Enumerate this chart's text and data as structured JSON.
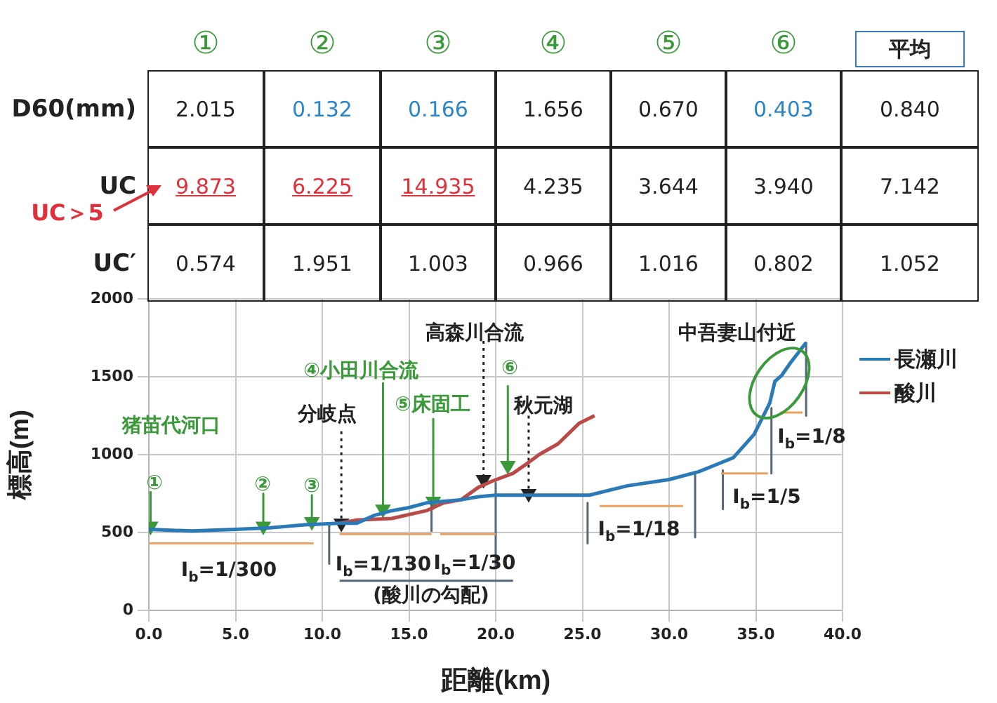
{
  "chart_data": {
    "type": "line",
    "xlabel": "距離(km)",
    "ylabel": "標高(m)",
    "xlim": [
      0,
      40
    ],
    "ylim": [
      0,
      2000
    ],
    "xticks": [
      {
        "value": 0,
        "label": "0.0"
      },
      {
        "value": 5,
        "label": "5.0"
      },
      {
        "value": 10,
        "label": "10.0"
      },
      {
        "value": 15,
        "label": "15.0"
      },
      {
        "value": 20,
        "label": "20.0"
      },
      {
        "value": 25,
        "label": "25.0"
      },
      {
        "value": 30,
        "label": "30.0"
      },
      {
        "value": 35,
        "label": "35.0"
      },
      {
        "value": 40,
        "label": "40.0"
      }
    ],
    "yticks": [
      0,
      500,
      1000,
      1500,
      2000
    ],
    "grid": true,
    "legend": "right",
    "marker": "none",
    "series": [
      {
        "name": "長瀬川",
        "color": "#2a7ab8",
        "x": [
          0,
          2.5,
          5,
          7,
          9,
          11,
          12,
          13,
          14,
          15,
          16,
          17,
          18,
          19,
          20,
          22,
          25.4,
          27.6,
          30,
          31.7,
          33.7,
          34.9,
          35.8,
          36.1,
          36.5,
          37,
          37.9
        ],
        "values": [
          520,
          510,
          520,
          530,
          550,
          560,
          560,
          610,
          640,
          660,
          690,
          700,
          710,
          730,
          740,
          740,
          740,
          800,
          840,
          890,
          980,
          1130,
          1330,
          1470,
          1510,
          1590,
          1720
        ]
      },
      {
        "name": "酸川",
        "color": "#b94a48",
        "x": [
          11,
          12,
          14,
          16,
          17,
          18,
          19,
          19.8,
          21,
          21.9,
          22.5,
          23.6,
          24.8,
          25.7
        ],
        "values": [
          560,
          580,
          590,
          640,
          690,
          710,
          790,
          830,
          880,
          950,
          1000,
          1070,
          1200,
          1250
        ]
      },
      {
        "color": "#e9a060",
        "x": [
          0,
          9.5
        ],
        "values": [
          430,
          430
        ]
      },
      {
        "color": "#e9a060",
        "x": [
          11,
          16.3
        ],
        "values": [
          490,
          490
        ]
      },
      {
        "color": "#e9a060",
        "x": [
          16.8,
          20
        ],
        "values": [
          490,
          490
        ]
      },
      {
        "color": "#e9a060",
        "x": [
          26,
          30.8
        ],
        "values": [
          670,
          670
        ]
      },
      {
        "color": "#e9a060",
        "x": [
          33,
          35.7
        ],
        "values": [
          880,
          880
        ]
      },
      {
        "color": "#e9a060",
        "x": [
          36.4,
          37.7
        ],
        "values": [
          1270,
          1270
        ]
      },
      {
        "color": "#556677",
        "x": [
          11,
          21
        ],
        "values": [
          190,
          190
        ]
      },
      {
        "color": "#556677",
        "x": [
          10.4,
          10.4
        ],
        "values": [
          560,
          300
        ]
      },
      {
        "color": "#556677",
        "x": [
          16.3,
          16.3
        ],
        "values": [
          700,
          510
        ]
      },
      {
        "color": "#556677",
        "x": [
          20,
          20
        ],
        "values": [
          820,
          280
        ]
      },
      {
        "color": "#556677",
        "x": [
          25.3,
          25.3
        ],
        "values": [
          690,
          430
        ]
      },
      {
        "color": "#556677",
        "x": [
          31.5,
          31.5
        ],
        "values": [
          890,
          470
        ]
      },
      {
        "color": "#556677",
        "x": [
          33.1,
          33.1
        ],
        "values": [
          900,
          650
        ]
      },
      {
        "color": "#556677",
        "x": [
          35.9,
          35.9
        ],
        "values": [
          1300,
          880
        ]
      },
      {
        "color": "#556677",
        "x": [
          37.9,
          37.9
        ],
        "values": [
          1720,
          1250
        ]
      },
      {
        "color": "#3a9a3a",
        "marker": "triangle",
        "x": [
          0.1,
          0.1
        ],
        "values": [
          760,
          540
        ]
      },
      {
        "color": "#3a9a3a",
        "marker": "triangle",
        "x": [
          6.6,
          6.6
        ],
        "values": [
          750,
          540
        ]
      },
      {
        "color": "#3a9a3a",
        "marker": "triangle",
        "x": [
          9.4,
          9.4
        ],
        "values": [
          740,
          570
        ]
      },
      {
        "color": "#3a9a3a",
        "marker": "triangle",
        "x": [
          13.5,
          13.5
        ],
        "values": [
          1460,
          650
        ]
      },
      {
        "color": "#3a9a3a",
        "marker": "triangle",
        "x": [
          16.4,
          16.4
        ],
        "values": [
          1230,
          700
        ]
      },
      {
        "color": "#3a9a3a",
        "marker": "triangle",
        "x": [
          20.7,
          20.7
        ],
        "values": [
          1440,
          930
        ]
      },
      {
        "color": "#222222",
        "marker": "triangle",
        "line_style": "dotted",
        "x": [
          11.1,
          11.1
        ],
        "values": [
          1150,
          560
        ]
      },
      {
        "color": "#222222",
        "marker": "triangle",
        "line_style": "dotted",
        "x": [
          19.3,
          19.3
        ],
        "values": [
          1730,
          840
        ]
      },
      {
        "color": "#222222",
        "marker": "triangle",
        "line_style": "dotted",
        "x": [
          21.9,
          21.9
        ],
        "values": [
          1250,
          750
        ]
      }
    ],
    "annotations": [
      "①",
      "②",
      "③",
      "④",
      "⑤",
      "⑥",
      "平均",
      "D60(mm)",
      "2.015",
      "0.132",
      "0.166",
      "1.656",
      "0.670",
      "0.403",
      "0.840",
      "UC",
      "9.873",
      "6.225",
      "14.935",
      "4.235",
      "3.644",
      "3.940",
      "7.142",
      "UC′",
      "0.574",
      "1.951",
      "1.003",
      "0.966",
      "1.016",
      "0.802",
      "1.052",
      "UC＞5",
      "I$_{b}$=1/300",
      "I$_{b}$=1/130",
      "I$_{b}$=1/30",
      "(酸川の勾配)",
      "I$_{b}$=1/18",
      "I$_{b}$=1/5",
      "I$_{b}$=1/8",
      "猪苗代河口",
      "①",
      "②",
      "③",
      "④小田川合流",
      "⑤床固工",
      "⑥",
      "分岐点",
      "高森川合流",
      "秋元湖",
      "中吾妻山付近"
    ]
  }
}
